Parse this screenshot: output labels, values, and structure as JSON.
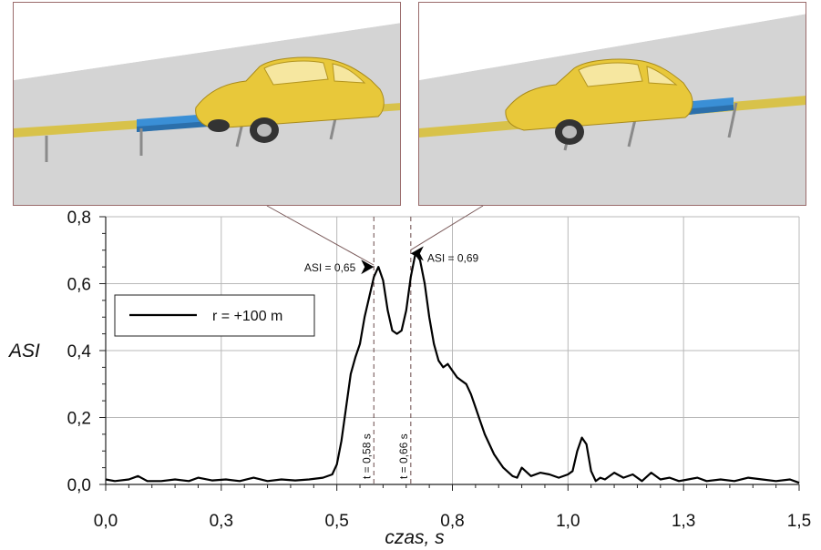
{
  "insets": [
    {
      "name": "crash-frame-t058",
      "description_icon": "car-hitting-guardrail"
    },
    {
      "name": "crash-frame-t066",
      "description_icon": "car-hitting-guardrail"
    }
  ],
  "colors": {
    "car": "#e8c83a",
    "barrier": "#3a8fd6",
    "ground": "#d4d4d4",
    "curve": "#000000",
    "grid": "#b8b8b8",
    "inset_border": "#9a6b6b",
    "ann_line": "#7a5a5a"
  },
  "chart_data": {
    "type": "line",
    "xlabel": "czas, s",
    "ylabel": "ASI",
    "xlim": [
      0.0,
      1.5
    ],
    "ylim": [
      0.0,
      0.8
    ],
    "x_ticks": [
      "0,0",
      "0,3",
      "0,5",
      "0,8",
      "1,0",
      "1,3",
      "1,5"
    ],
    "x_tick_values": [
      0.0,
      0.25,
      0.5,
      0.75,
      1.0,
      1.25,
      1.5
    ],
    "y_ticks": [
      "0,0",
      "0,2",
      "0,4",
      "0,6",
      "0,8"
    ],
    "y_tick_values": [
      0.0,
      0.2,
      0.4,
      0.6,
      0.8
    ],
    "grid": true,
    "legend": {
      "position": "upper-left",
      "entries": [
        "r = +100 m"
      ]
    },
    "series": [
      {
        "name": "r = +100 m",
        "x": [
          0.0,
          0.02,
          0.05,
          0.07,
          0.09,
          0.12,
          0.15,
          0.18,
          0.2,
          0.23,
          0.26,
          0.29,
          0.32,
          0.35,
          0.38,
          0.41,
          0.44,
          0.47,
          0.49,
          0.5,
          0.51,
          0.52,
          0.53,
          0.54,
          0.55,
          0.56,
          0.57,
          0.58,
          0.59,
          0.6,
          0.61,
          0.62,
          0.63,
          0.64,
          0.65,
          0.66,
          0.67,
          0.68,
          0.69,
          0.7,
          0.71,
          0.72,
          0.73,
          0.74,
          0.75,
          0.76,
          0.77,
          0.78,
          0.79,
          0.8,
          0.81,
          0.82,
          0.83,
          0.84,
          0.85,
          0.86,
          0.88,
          0.89,
          0.9,
          0.92,
          0.94,
          0.96,
          0.98,
          1.0,
          1.01,
          1.02,
          1.03,
          1.04,
          1.05,
          1.06,
          1.07,
          1.08,
          1.1,
          1.12,
          1.14,
          1.16,
          1.18,
          1.2,
          1.22,
          1.24,
          1.26,
          1.28,
          1.3,
          1.33,
          1.36,
          1.39,
          1.42,
          1.45,
          1.48,
          1.5
        ],
        "y": [
          0.015,
          0.01,
          0.015,
          0.025,
          0.01,
          0.01,
          0.015,
          0.01,
          0.02,
          0.012,
          0.015,
          0.01,
          0.02,
          0.01,
          0.015,
          0.012,
          0.015,
          0.02,
          0.03,
          0.06,
          0.13,
          0.23,
          0.33,
          0.38,
          0.42,
          0.5,
          0.56,
          0.62,
          0.65,
          0.61,
          0.52,
          0.46,
          0.45,
          0.46,
          0.52,
          0.62,
          0.69,
          0.67,
          0.6,
          0.5,
          0.42,
          0.37,
          0.35,
          0.36,
          0.34,
          0.32,
          0.31,
          0.3,
          0.27,
          0.23,
          0.19,
          0.15,
          0.12,
          0.09,
          0.07,
          0.05,
          0.025,
          0.02,
          0.05,
          0.025,
          0.035,
          0.03,
          0.02,
          0.03,
          0.04,
          0.1,
          0.14,
          0.12,
          0.04,
          0.01,
          0.02,
          0.015,
          0.035,
          0.02,
          0.03,
          0.01,
          0.035,
          0.015,
          0.02,
          0.01,
          0.015,
          0.02,
          0.01,
          0.015,
          0.01,
          0.02,
          0.015,
          0.01,
          0.015,
          0.005
        ]
      }
    ],
    "annotations": [
      {
        "text": "ASI = 0,65",
        "x": 0.58,
        "y": 0.65
      },
      {
        "text": "ASI = 0,69",
        "x": 0.66,
        "y": 0.69
      },
      {
        "text": "t = 0,58 s",
        "x": 0.58
      },
      {
        "text": "t = 0,66 s",
        "x": 0.66
      }
    ]
  }
}
